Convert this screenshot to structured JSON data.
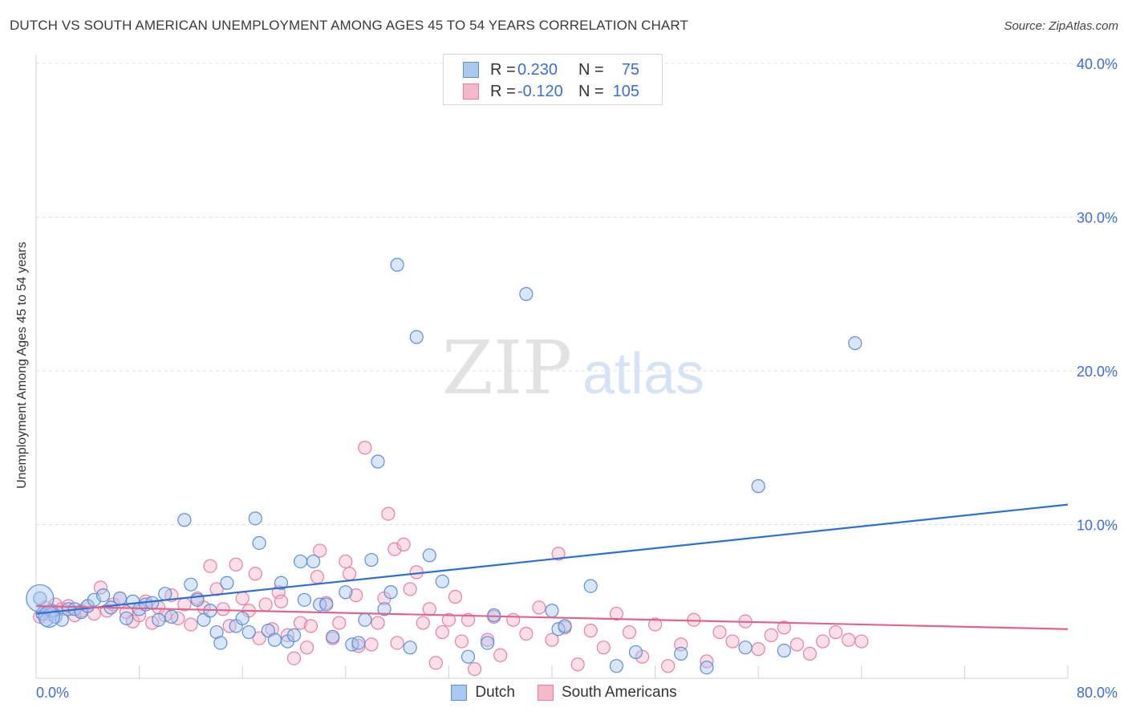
{
  "title": "DUTCH VS SOUTH AMERICAN UNEMPLOYMENT AMONG AGES 45 TO 54 YEARS CORRELATION CHART",
  "source": "Source: ZipAtlas.com",
  "watermark": {
    "zip": "ZIP",
    "atlas": "atlas"
  },
  "legend": {
    "rows": [
      {
        "r_label": "R =",
        "r_value": "0.230",
        "n_label": "N =",
        "n_value": "75"
      },
      {
        "r_label": "R =",
        "r_value": "-0.120",
        "n_label": "N =",
        "n_value": "105"
      }
    ]
  },
  "bottom_legend": [
    "Dutch",
    "South Americans"
  ],
  "colors": {
    "dutch_fill": "#a9c8f0",
    "dutch_stroke": "#5b8fd8",
    "dutch_line": "#2e6fcf",
    "sa_fill": "#f5b8cb",
    "sa_stroke": "#e87fa0",
    "sa_line": "#e0648c",
    "axis_text": "#3b6fd4",
    "grid": "#dcdcdc"
  },
  "chart_data": {
    "type": "scatter",
    "title": "DUTCH VS SOUTH AMERICAN UNEMPLOYMENT AMONG AGES 45 TO 54 YEARS CORRELATION CHART",
    "xlabel": "",
    "ylabel": "Unemployment Among Ages 45 to 54 years",
    "xlim": [
      0,
      80
    ],
    "ylim": [
      0,
      41
    ],
    "x_tick_labels": [
      "0.0%",
      "80.0%"
    ],
    "y_ticks": [
      10,
      20,
      30,
      40
    ],
    "y_tick_labels": [
      "10.0%",
      "20.0%",
      "30.0%",
      "40.0%"
    ],
    "series": [
      {
        "name": "Dutch",
        "trend": {
          "x": [
            0,
            80
          ],
          "y": [
            4.2,
            11.3
          ]
        },
        "points": [
          [
            0.3,
            5.2
          ],
          [
            0.5,
            4.2
          ],
          [
            0.8,
            3.8
          ],
          [
            1.2,
            4.4
          ],
          [
            1.5,
            4.0
          ],
          [
            2.0,
            3.8
          ],
          [
            2.5,
            4.5
          ],
          [
            3.0,
            4.5
          ],
          [
            3.5,
            4.3
          ],
          [
            4.0,
            4.7
          ],
          [
            4.5,
            5.1
          ],
          [
            5.2,
            5.4
          ],
          [
            5.8,
            4.6
          ],
          [
            6.5,
            5.2
          ],
          [
            7.0,
            3.9
          ],
          [
            7.5,
            5.0
          ],
          [
            8.0,
            4.5
          ],
          [
            8.5,
            4.8
          ],
          [
            9.0,
            4.9
          ],
          [
            9.5,
            3.8
          ],
          [
            10.0,
            5.5
          ],
          [
            10.5,
            4.0
          ],
          [
            11.5,
            10.3
          ],
          [
            12.0,
            6.1
          ],
          [
            12.5,
            5.1
          ],
          [
            13.0,
            3.8
          ],
          [
            13.5,
            4.4
          ],
          [
            14.0,
            3.0
          ],
          [
            14.3,
            2.3
          ],
          [
            14.8,
            6.2
          ],
          [
            15.5,
            3.4
          ],
          [
            16.0,
            3.9
          ],
          [
            16.5,
            3.0
          ],
          [
            17.0,
            10.4
          ],
          [
            17.3,
            8.8
          ],
          [
            18.0,
            3.1
          ],
          [
            18.5,
            2.5
          ],
          [
            19.0,
            6.2
          ],
          [
            19.5,
            2.4
          ],
          [
            20.0,
            2.8
          ],
          [
            20.5,
            7.6
          ],
          [
            20.8,
            5.1
          ],
          [
            21.5,
            7.6
          ],
          [
            22.0,
            4.8
          ],
          [
            22.5,
            4.8
          ],
          [
            23.0,
            2.7
          ],
          [
            24.0,
            5.6
          ],
          [
            24.5,
            2.2
          ],
          [
            25.0,
            2.3
          ],
          [
            25.5,
            3.8
          ],
          [
            26.0,
            7.7
          ],
          [
            26.5,
            14.1
          ],
          [
            27.0,
            4.5
          ],
          [
            27.5,
            5.6
          ],
          [
            28.0,
            26.9
          ],
          [
            29.0,
            2.0
          ],
          [
            29.5,
            22.2
          ],
          [
            30.5,
            8.0
          ],
          [
            31.5,
            6.3
          ],
          [
            33.5,
            1.4
          ],
          [
            35.0,
            2.3
          ],
          [
            35.5,
            4.1
          ],
          [
            38.0,
            25.0
          ],
          [
            40.0,
            4.4
          ],
          [
            40.5,
            3.2
          ],
          [
            41.0,
            3.4
          ],
          [
            43.0,
            6.0
          ],
          [
            45.0,
            0.8
          ],
          [
            46.5,
            1.7
          ],
          [
            50.0,
            1.6
          ],
          [
            52.0,
            0.7
          ],
          [
            55.0,
            2.0
          ],
          [
            56.0,
            12.5
          ],
          [
            58.0,
            1.8
          ],
          [
            63.5,
            21.8
          ]
        ]
      },
      {
        "name": "South Americans",
        "trend": {
          "x": [
            0,
            80
          ],
          "y": [
            4.7,
            3.2
          ]
        },
        "points": [
          [
            0.3,
            4.0
          ],
          [
            0.7,
            4.6
          ],
          [
            1.0,
            4.2
          ],
          [
            1.5,
            4.8
          ],
          [
            2.0,
            4.5
          ],
          [
            2.5,
            4.7
          ],
          [
            3.0,
            4.1
          ],
          [
            3.5,
            4.4
          ],
          [
            4.0,
            4.7
          ],
          [
            4.5,
            4.2
          ],
          [
            5.0,
            5.9
          ],
          [
            5.5,
            4.4
          ],
          [
            6.0,
            4.8
          ],
          [
            6.5,
            5.2
          ],
          [
            7.0,
            4.3
          ],
          [
            7.5,
            3.7
          ],
          [
            8.0,
            4.1
          ],
          [
            8.5,
            5.0
          ],
          [
            9.0,
            3.6
          ],
          [
            9.5,
            4.6
          ],
          [
            10.0,
            4.1
          ],
          [
            10.5,
            5.4
          ],
          [
            11.0,
            3.9
          ],
          [
            11.5,
            4.8
          ],
          [
            12.0,
            3.5
          ],
          [
            12.5,
            5.2
          ],
          [
            13.0,
            4.6
          ],
          [
            13.5,
            7.3
          ],
          [
            14.0,
            5.8
          ],
          [
            14.5,
            4.5
          ],
          [
            15.0,
            3.4
          ],
          [
            15.5,
            7.4
          ],
          [
            16.0,
            5.2
          ],
          [
            16.5,
            4.4
          ],
          [
            17.0,
            6.8
          ],
          [
            17.3,
            2.6
          ],
          [
            17.8,
            4.8
          ],
          [
            18.3,
            3.2
          ],
          [
            18.8,
            5.6
          ],
          [
            19.0,
            5.0
          ],
          [
            19.5,
            2.8
          ],
          [
            20.0,
            1.3
          ],
          [
            20.5,
            3.6
          ],
          [
            21.0,
            2.0
          ],
          [
            21.3,
            3.4
          ],
          [
            21.8,
            6.6
          ],
          [
            22.0,
            8.3
          ],
          [
            22.5,
            4.9
          ],
          [
            23.0,
            2.6
          ],
          [
            23.5,
            3.6
          ],
          [
            24.0,
            7.6
          ],
          [
            24.3,
            6.8
          ],
          [
            24.8,
            5.4
          ],
          [
            25.0,
            2.1
          ],
          [
            25.5,
            15.0
          ],
          [
            26.0,
            2.2
          ],
          [
            26.5,
            3.6
          ],
          [
            27.0,
            5.2
          ],
          [
            27.3,
            10.7
          ],
          [
            27.8,
            8.4
          ],
          [
            28.0,
            2.3
          ],
          [
            28.5,
            8.7
          ],
          [
            29.0,
            5.8
          ],
          [
            29.5,
            6.9
          ],
          [
            30.0,
            3.6
          ],
          [
            30.5,
            4.5
          ],
          [
            31.0,
            1.0
          ],
          [
            31.5,
            3.0
          ],
          [
            32.0,
            3.8
          ],
          [
            32.5,
            5.3
          ],
          [
            33.0,
            2.4
          ],
          [
            33.5,
            3.8
          ],
          [
            34.0,
            0.6
          ],
          [
            35.0,
            2.5
          ],
          [
            35.5,
            4.0
          ],
          [
            36.0,
            1.5
          ],
          [
            37.0,
            3.8
          ],
          [
            38.0,
            2.9
          ],
          [
            39.0,
            4.6
          ],
          [
            40.0,
            2.5
          ],
          [
            40.5,
            8.1
          ],
          [
            41.0,
            3.3
          ],
          [
            42.0,
            0.9
          ],
          [
            43.0,
            3.1
          ],
          [
            44.0,
            2.0
          ],
          [
            45.0,
            4.2
          ],
          [
            46.0,
            3.0
          ],
          [
            47.0,
            1.4
          ],
          [
            48.0,
            3.5
          ],
          [
            49.0,
            0.8
          ],
          [
            50.0,
            2.2
          ],
          [
            51.0,
            3.8
          ],
          [
            52.0,
            1.1
          ],
          [
            53.0,
            3.0
          ],
          [
            54.0,
            2.4
          ],
          [
            55.0,
            3.7
          ],
          [
            56.0,
            1.9
          ],
          [
            57.0,
            2.8
          ],
          [
            58.0,
            3.3
          ],
          [
            59.0,
            2.2
          ],
          [
            60.0,
            1.6
          ],
          [
            61.0,
            2.4
          ],
          [
            62.0,
            3.0
          ],
          [
            63.0,
            2.5
          ],
          [
            64.0,
            2.4
          ]
        ]
      }
    ]
  }
}
